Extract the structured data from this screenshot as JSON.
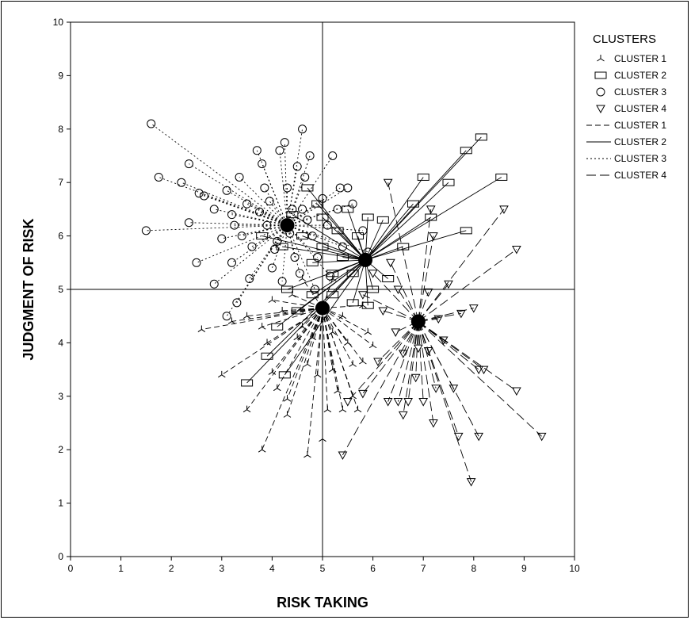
{
  "chart_data": {
    "type": "scatter",
    "title": "",
    "xlabel": "RISK TAKING",
    "ylabel": "JUDGMENT OF RISK",
    "xlim": [
      0,
      10
    ],
    "ylim": [
      0,
      10
    ],
    "xticks": [
      "0",
      "1",
      "2",
      "3",
      "4",
      "5",
      "6",
      "7",
      "8",
      "9",
      "10"
    ],
    "yticks": [
      "0",
      "1",
      "2",
      "3",
      "4",
      "5",
      "6",
      "7",
      "8",
      "9",
      "10"
    ],
    "reference_lines": {
      "x": 5,
      "y": 5
    },
    "grid": false,
    "legend": {
      "title": "CLUSTERS",
      "placement": "right",
      "marker_entries": [
        {
          "label": "CLUSTER 1",
          "marker": "tripod"
        },
        {
          "label": "CLUSTER 2",
          "marker": "square"
        },
        {
          "label": "CLUSTER 3",
          "marker": "circle"
        },
        {
          "label": "CLUSTER 4",
          "marker": "triangle-down"
        }
      ],
      "line_entries": [
        {
          "label": "CLUSTER 1",
          "dash": "dash"
        },
        {
          "label": "CLUSTER 2",
          "dash": "solid"
        },
        {
          "label": "CLUSTER 3",
          "dash": "dot"
        },
        {
          "label": "CLUSTER 4",
          "dash": "long-dash"
        }
      ]
    },
    "series": [
      {
        "marker": "tripod",
        "dash": "dash",
        "centroid": [
          5.0,
          4.65
        ],
        "points": [
          [
            2.6,
            4.25
          ],
          [
            3.0,
            3.4
          ],
          [
            3.5,
            2.75
          ],
          [
            3.8,
            2.0
          ],
          [
            4.3,
            2.65
          ],
          [
            4.7,
            1.9
          ],
          [
            5.0,
            2.2
          ],
          [
            5.1,
            2.75
          ],
          [
            5.4,
            2.75
          ],
          [
            5.7,
            2.75
          ],
          [
            5.6,
            3.0
          ],
          [
            4.0,
            3.45
          ],
          [
            4.1,
            3.15
          ],
          [
            4.3,
            2.95
          ],
          [
            4.5,
            4.1
          ],
          [
            4.7,
            3.6
          ],
          [
            4.9,
            3.4
          ],
          [
            5.2,
            3.5
          ],
          [
            5.6,
            3.6
          ],
          [
            5.8,
            3.65
          ],
          [
            6.0,
            3.95
          ],
          [
            3.2,
            4.4
          ],
          [
            3.5,
            4.5
          ],
          [
            3.8,
            4.3
          ],
          [
            4.0,
            4.8
          ],
          [
            4.2,
            4.6
          ],
          [
            4.4,
            4.9
          ],
          [
            4.6,
            4.3
          ],
          [
            4.8,
            4.1
          ],
          [
            5.2,
            4.2
          ],
          [
            5.4,
            4.5
          ],
          [
            5.5,
            4.0
          ],
          [
            5.9,
            4.2
          ],
          [
            4.6,
            5.2
          ],
          [
            5.2,
            5.2
          ],
          [
            5.8,
            4.7
          ],
          [
            3.9,
            4.0
          ],
          [
            5.3,
            3.1
          ]
        ]
      },
      {
        "marker": "square",
        "dash": "solid",
        "centroid": [
          5.85,
          5.55
        ],
        "points": [
          [
            3.5,
            3.25
          ],
          [
            3.9,
            3.75
          ],
          [
            4.25,
            3.4
          ],
          [
            4.1,
            4.3
          ],
          [
            4.5,
            4.6
          ],
          [
            4.3,
            5.0
          ],
          [
            4.8,
            4.9
          ],
          [
            5.2,
            4.9
          ],
          [
            5.6,
            4.75
          ],
          [
            5.9,
            4.7
          ],
          [
            6.0,
            5.0
          ],
          [
            6.3,
            5.2
          ],
          [
            5.9,
            6.35
          ],
          [
            5.7,
            6.0
          ],
          [
            5.4,
            5.6
          ],
          [
            5.2,
            5.3
          ],
          [
            5.0,
            5.8
          ],
          [
            4.8,
            5.5
          ],
          [
            4.6,
            6.0
          ],
          [
            5.0,
            6.35
          ],
          [
            5.3,
            6.1
          ],
          [
            5.5,
            6.5
          ],
          [
            4.2,
            5.8
          ],
          [
            4.4,
            6.4
          ],
          [
            4.7,
            6.9
          ],
          [
            4.9,
            6.6
          ],
          [
            3.8,
            6.0
          ],
          [
            7.0,
            7.1
          ],
          [
            7.5,
            7.0
          ],
          [
            7.85,
            7.6
          ],
          [
            8.15,
            7.85
          ],
          [
            8.55,
            7.1
          ],
          [
            7.15,
            6.35
          ],
          [
            7.85,
            6.1
          ],
          [
            6.8,
            6.6
          ],
          [
            6.2,
            6.3
          ],
          [
            6.6,
            5.8
          ],
          [
            5.6,
            5.3
          ]
        ]
      },
      {
        "marker": "circle",
        "dash": "dot",
        "centroid": [
          4.3,
          6.2
        ],
        "points": [
          [
            1.5,
            6.1
          ],
          [
            1.6,
            8.1
          ],
          [
            1.75,
            7.1
          ],
          [
            2.2,
            7.0
          ],
          [
            2.35,
            7.35
          ],
          [
            2.35,
            6.25
          ],
          [
            2.5,
            5.5
          ],
          [
            2.55,
            6.8
          ],
          [
            2.65,
            6.75
          ],
          [
            2.85,
            5.1
          ],
          [
            2.85,
            6.5
          ],
          [
            3.1,
            4.5
          ],
          [
            3.2,
            5.5
          ],
          [
            3.3,
            4.75
          ],
          [
            3.1,
            6.85
          ],
          [
            3.35,
            7.1
          ],
          [
            3.2,
            6.4
          ],
          [
            3.4,
            6.0
          ],
          [
            3.5,
            6.6
          ],
          [
            3.6,
            5.8
          ],
          [
            3.7,
            7.6
          ],
          [
            3.8,
            7.35
          ],
          [
            3.85,
            6.9
          ],
          [
            3.9,
            6.2
          ],
          [
            4.0,
            5.4
          ],
          [
            4.1,
            5.9
          ],
          [
            4.15,
            7.6
          ],
          [
            4.25,
            7.75
          ],
          [
            4.3,
            6.9
          ],
          [
            4.4,
            6.5
          ],
          [
            4.45,
            5.6
          ],
          [
            4.55,
            5.3
          ],
          [
            4.6,
            8.0
          ],
          [
            4.65,
            7.1
          ],
          [
            4.7,
            6.3
          ],
          [
            4.75,
            7.5
          ],
          [
            4.8,
            6.0
          ],
          [
            4.9,
            5.6
          ],
          [
            5.0,
            6.7
          ],
          [
            5.1,
            6.2
          ],
          [
            5.2,
            7.5
          ],
          [
            5.3,
            6.5
          ],
          [
            5.4,
            5.8
          ],
          [
            5.5,
            6.9
          ],
          [
            5.6,
            6.6
          ],
          [
            5.8,
            6.1
          ],
          [
            5.9,
            5.7
          ],
          [
            3.0,
            5.95
          ],
          [
            3.55,
            5.2
          ],
          [
            3.75,
            6.45
          ],
          [
            3.95,
            6.65
          ],
          [
            4.2,
            5.15
          ],
          [
            4.5,
            7.3
          ],
          [
            4.85,
            5.0
          ],
          [
            5.15,
            5.25
          ],
          [
            5.35,
            6.9
          ],
          [
            3.25,
            6.2
          ],
          [
            4.05,
            5.75
          ],
          [
            4.35,
            6.05
          ],
          [
            4.6,
            6.5
          ]
        ]
      },
      {
        "marker": "triangle-down",
        "dash": "long-dash",
        "centroid": [
          6.9,
          4.4
        ],
        "points": [
          [
            5.4,
            1.9
          ],
          [
            5.5,
            2.9
          ],
          [
            5.8,
            3.05
          ],
          [
            6.1,
            3.65
          ],
          [
            6.3,
            2.9
          ],
          [
            6.5,
            2.9
          ],
          [
            6.6,
            2.65
          ],
          [
            6.7,
            2.9
          ],
          [
            6.85,
            3.35
          ],
          [
            7.0,
            2.9
          ],
          [
            7.2,
            2.5
          ],
          [
            7.25,
            3.15
          ],
          [
            7.6,
            3.15
          ],
          [
            7.7,
            2.25
          ],
          [
            7.95,
            1.4
          ],
          [
            8.1,
            2.25
          ],
          [
            8.1,
            3.5
          ],
          [
            8.2,
            3.5
          ],
          [
            8.85,
            3.1
          ],
          [
            9.35,
            2.25
          ],
          [
            7.4,
            4.05
          ],
          [
            7.75,
            4.55
          ],
          [
            8.0,
            4.65
          ],
          [
            7.3,
            4.45
          ],
          [
            7.1,
            4.95
          ],
          [
            7.5,
            5.1
          ],
          [
            7.15,
            6.5
          ],
          [
            7.2,
            6.0
          ],
          [
            8.6,
            6.5
          ],
          [
            8.85,
            5.75
          ],
          [
            6.3,
            7.0
          ],
          [
            6.35,
            5.5
          ],
          [
            6.0,
            5.3
          ],
          [
            5.8,
            4.9
          ],
          [
            6.2,
            4.6
          ],
          [
            6.45,
            4.2
          ],
          [
            6.6,
            3.8
          ],
          [
            6.9,
            3.9
          ],
          [
            7.1,
            3.85
          ],
          [
            6.5,
            5.0
          ]
        ]
      }
    ]
  }
}
